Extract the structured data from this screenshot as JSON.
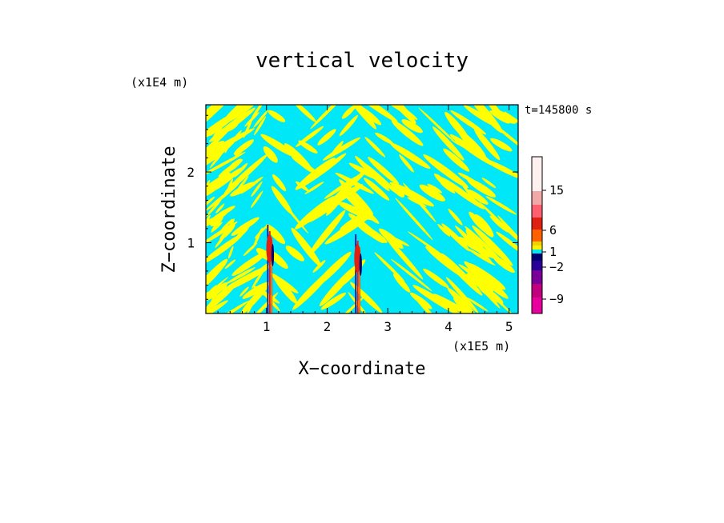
{
  "chart_data": {
    "type": "heatmap",
    "title": "vertical velocity",
    "xlabel": "X−coordinate",
    "ylabel": "Z−coordinate",
    "x_unit": "(x1E5 m)",
    "y_unit": "(x1E4 m)",
    "time_label": "t=145800 s",
    "xlim": [
      0,
      5.15
    ],
    "ylim": [
      0,
      2.95
    ],
    "x_ticks": [
      "1",
      "2",
      "3",
      "4",
      "5"
    ],
    "y_ticks": [
      "1",
      "2"
    ],
    "colorbar": {
      "tick_labels": [
        "15",
        "6",
        "1",
        "−2",
        "−9"
      ],
      "colors": [
        "#e8009e",
        "#c0007c",
        "#7a009a",
        "#2a009a",
        "#000070",
        "#00e8f0",
        "#fff000",
        "#f0d000",
        "#ff6000",
        "#e02010",
        "#ff6070",
        "#f0a8a8",
        "#fff0f0"
      ]
    },
    "background_color": "#00e8f8",
    "band_color": "#ffff00",
    "jet_locations_x": [
      1.05,
      2.5
    ]
  }
}
